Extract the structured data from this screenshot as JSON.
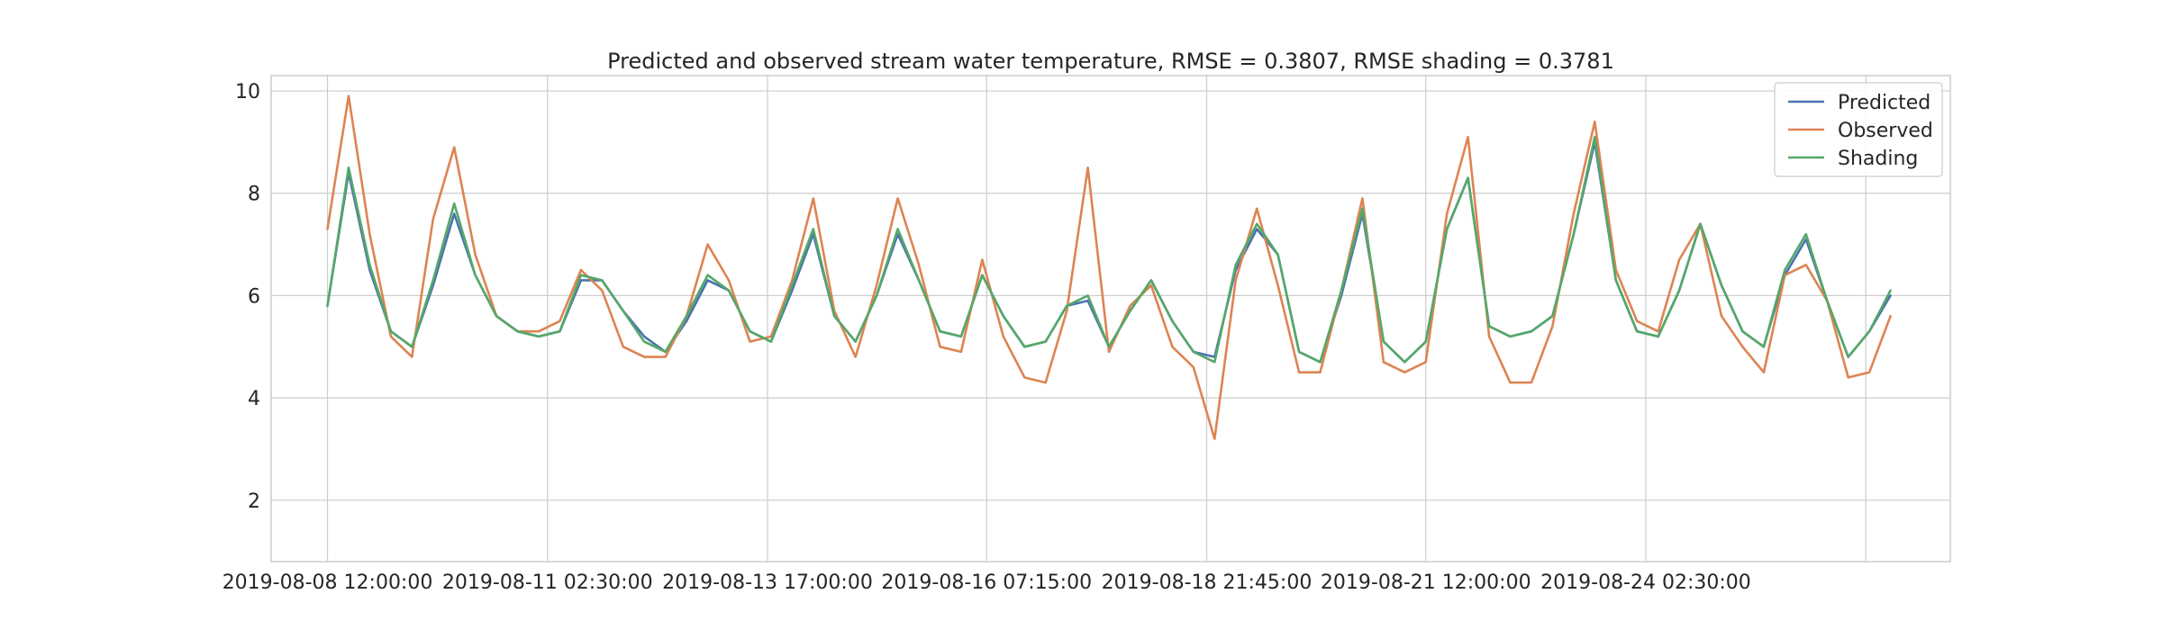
{
  "chart_data": {
    "type": "line",
    "title": "Predicted and observed stream water temperature, RMSE = 0.3807, RMSE shading = 0.3781",
    "xlabel": "",
    "ylabel": "",
    "x_ticks": [
      "2019-08-08 12:00:00",
      "2019-08-11 02:30:00",
      "2019-08-13 17:00:00",
      "2019-08-16 07:15:00",
      "2019-08-18 21:45:00",
      "2019-08-21 12:00:00",
      "2019-08-24 02:30:00"
    ],
    "y_ticks": [
      2,
      4,
      6,
      8,
      10
    ],
    "xlim": [
      "2019-08-07 20:00",
      "2019-08-27 17:00"
    ],
    "ylim": [
      0.8,
      10.3
    ],
    "grid": true,
    "legend_position": "top-right",
    "x": [
      "2019-08-08 12:00",
      "2019-08-08 18:00",
      "2019-08-09 00:00",
      "2019-08-09 06:00",
      "2019-08-09 12:00",
      "2019-08-09 18:00",
      "2019-08-10 00:00",
      "2019-08-10 06:00",
      "2019-08-10 12:00",
      "2019-08-10 18:00",
      "2019-08-11 00:00",
      "2019-08-11 06:00",
      "2019-08-11 12:00",
      "2019-08-11 18:00",
      "2019-08-12 00:00",
      "2019-08-12 06:00",
      "2019-08-12 12:00",
      "2019-08-12 18:00",
      "2019-08-13 00:00",
      "2019-08-13 06:00",
      "2019-08-13 12:00",
      "2019-08-13 18:00",
      "2019-08-14 00:00",
      "2019-08-14 06:00",
      "2019-08-14 12:00",
      "2019-08-14 18:00",
      "2019-08-15 00:00",
      "2019-08-15 06:00",
      "2019-08-15 12:00",
      "2019-08-15 18:00",
      "2019-08-16 00:00",
      "2019-08-16 06:00",
      "2019-08-16 12:00",
      "2019-08-16 18:00",
      "2019-08-17 00:00",
      "2019-08-17 06:00",
      "2019-08-17 12:00",
      "2019-08-17 18:00",
      "2019-08-18 00:00",
      "2019-08-18 06:00",
      "2019-08-18 12:00",
      "2019-08-18 18:00",
      "2019-08-19 00:00",
      "2019-08-19 06:00",
      "2019-08-19 12:00",
      "2019-08-19 18:00",
      "2019-08-20 00:00",
      "2019-08-20 06:00",
      "2019-08-20 12:00",
      "2019-08-20 18:00",
      "2019-08-21 00:00",
      "2019-08-21 06:00",
      "2019-08-21 12:00",
      "2019-08-21 18:00",
      "2019-08-22 00:00",
      "2019-08-22 06:00",
      "2019-08-22 12:00",
      "2019-08-22 18:00",
      "2019-08-23 00:00",
      "2019-08-23 06:00",
      "2019-08-23 12:00",
      "2019-08-23 18:00",
      "2019-08-24 00:00",
      "2019-08-24 06:00",
      "2019-08-24 12:00",
      "2019-08-24 18:00",
      "2019-08-25 00:00",
      "2019-08-25 06:00",
      "2019-08-25 12:00",
      "2019-08-25 18:00",
      "2019-08-26 00:00",
      "2019-08-26 06:00",
      "2019-08-26 12:00",
      "2019-08-26 18:00",
      "2019-08-27 00:00"
    ],
    "series": [
      {
        "name": "Predicted",
        "color": "#4c72b0",
        "values": [
          5.8,
          8.4,
          6.5,
          5.3,
          5.0,
          6.2,
          7.6,
          6.4,
          5.6,
          5.3,
          5.2,
          5.3,
          6.3,
          6.3,
          5.7,
          5.2,
          4.9,
          5.5,
          6.3,
          6.1,
          5.3,
          5.1,
          6.1,
          7.2,
          5.6,
          5.1,
          6.0,
          7.2,
          6.3,
          5.3,
          5.2,
          6.4,
          5.6,
          5.0,
          5.1,
          5.8,
          5.9,
          5.0,
          5.7,
          6.3,
          5.5,
          4.9,
          4.8,
          6.5,
          7.3,
          6.8,
          4.9,
          4.7,
          6.0,
          7.6,
          5.1,
          4.7,
          5.1,
          7.3,
          8.3,
          5.4,
          5.2,
          5.3,
          5.6,
          7.2,
          9.0,
          6.3,
          5.3,
          5.2,
          6.1,
          7.4,
          6.2,
          5.3,
          5.0,
          6.4,
          7.1,
          5.9,
          4.8,
          5.3,
          6.0
        ]
      },
      {
        "name": "Observed",
        "color": "#dd8452",
        "values": [
          7.3,
          9.9,
          7.2,
          5.2,
          4.8,
          7.5,
          8.9,
          6.8,
          5.6,
          5.3,
          5.3,
          5.5,
          6.5,
          6.1,
          5.0,
          4.8,
          4.8,
          5.6,
          7.0,
          6.3,
          5.1,
          5.2,
          6.3,
          7.9,
          5.7,
          4.8,
          6.2,
          7.9,
          6.6,
          5.0,
          4.9,
          6.7,
          5.2,
          4.4,
          4.3,
          5.7,
          8.5,
          4.9,
          5.8,
          6.2,
          5.0,
          4.6,
          3.2,
          6.3,
          7.7,
          6.2,
          4.5,
          4.5,
          6.1,
          7.9,
          4.7,
          4.5,
          4.7,
          7.6,
          9.1,
          5.2,
          4.3,
          4.3,
          5.4,
          7.6,
          9.4,
          6.5,
          5.5,
          5.3,
          6.7,
          7.4,
          5.6,
          5.0,
          4.5,
          6.4,
          6.6,
          5.9,
          4.4,
          4.5,
          5.6
        ]
      },
      {
        "name": "Shading",
        "color": "#55a868",
        "values": [
          5.8,
          8.5,
          6.6,
          5.3,
          5.0,
          6.3,
          7.8,
          6.4,
          5.6,
          5.3,
          5.2,
          5.3,
          6.4,
          6.3,
          5.7,
          5.1,
          4.9,
          5.6,
          6.4,
          6.1,
          5.3,
          5.1,
          6.2,
          7.3,
          5.6,
          5.1,
          6.0,
          7.3,
          6.3,
          5.3,
          5.2,
          6.4,
          5.6,
          5.0,
          5.1,
          5.8,
          6.0,
          5.0,
          5.7,
          6.3,
          5.5,
          4.9,
          4.7,
          6.6,
          7.4,
          6.8,
          4.9,
          4.7,
          6.1,
          7.7,
          5.1,
          4.7,
          5.1,
          7.3,
          8.3,
          5.4,
          5.2,
          5.3,
          5.6,
          7.2,
          9.1,
          6.3,
          5.3,
          5.2,
          6.1,
          7.4,
          6.2,
          5.3,
          5.0,
          6.5,
          7.2,
          5.9,
          4.8,
          5.3,
          6.1
        ]
      }
    ]
  }
}
